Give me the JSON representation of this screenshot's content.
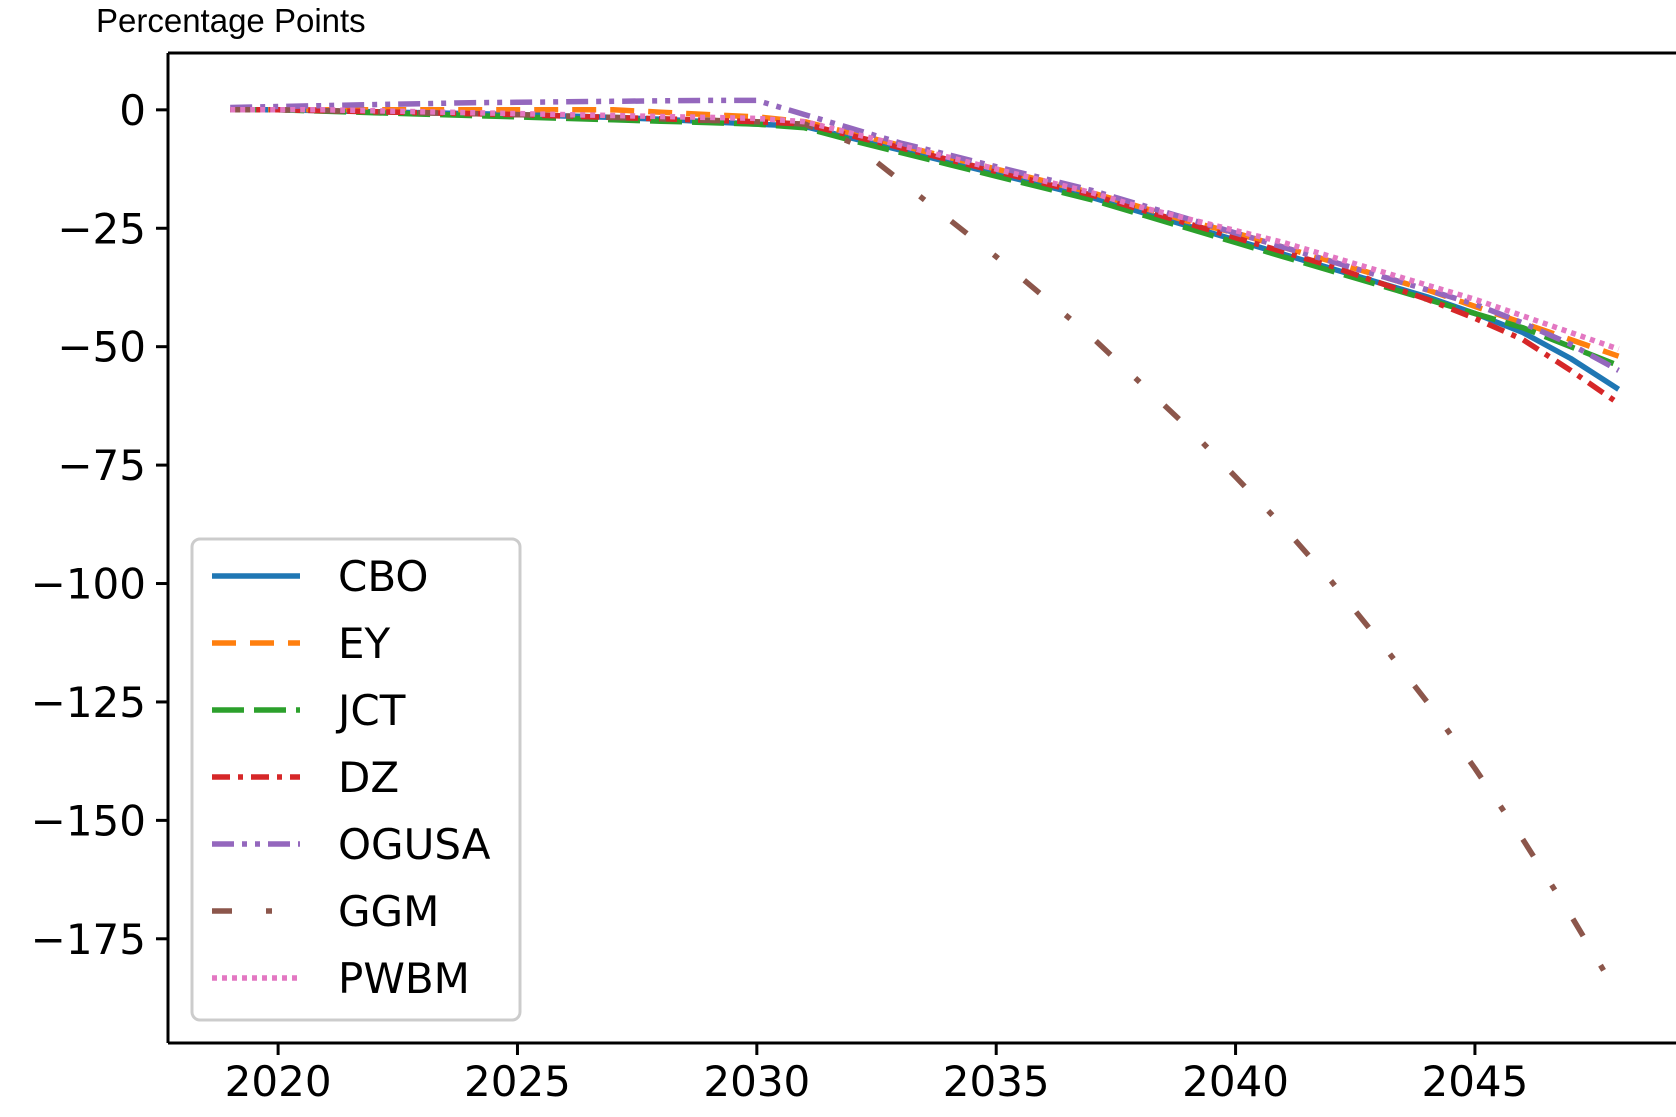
{
  "chart_data": {
    "type": "line",
    "ylabel": "Percentage Points",
    "xlim": [
      2017.7,
      2049.2
    ],
    "ylim": [
      -197,
      12
    ],
    "xticks": [
      2020,
      2025,
      2030,
      2035,
      2040,
      2045
    ],
    "yticks": [
      0,
      -25,
      -50,
      -75,
      -100,
      -125,
      -150,
      -175
    ],
    "ytick_labels": [
      "0",
      "−25",
      "−50",
      "−75",
      "−100",
      "−125",
      "−150",
      "−175"
    ],
    "grid": false,
    "legend_position": "lower-left",
    "x": [
      2019,
      2020,
      2021,
      2022,
      2023,
      2024,
      2025,
      2026,
      2027,
      2028,
      2029,
      2030,
      2031,
      2032,
      2033,
      2034,
      2035,
      2036,
      2037,
      2038,
      2039,
      2040,
      2041,
      2042,
      2043,
      2044,
      2045,
      2046,
      2047,
      2048
    ],
    "series": [
      {
        "name": "CBO",
        "color": "#1f77b4",
        "style": "solid",
        "values": [
          0,
          0,
          -0.2,
          -0.4,
          -0.6,
          -0.8,
          -1,
          -1.3,
          -1.6,
          -2,
          -2.5,
          -3,
          -3.5,
          -6,
          -8.5,
          -11,
          -13.5,
          -16,
          -18.5,
          -21.5,
          -24.5,
          -27.5,
          -30.5,
          -33.5,
          -36.5,
          -39.5,
          -43,
          -47,
          -52.5,
          -59
        ]
      },
      {
        "name": "EY",
        "color": "#ff7f0e",
        "style": "dashed",
        "values": [
          0,
          0,
          0,
          0,
          0,
          0,
          0,
          0,
          0,
          -0.5,
          -1,
          -1.5,
          -2.5,
          -5,
          -7.5,
          -10,
          -12.5,
          -15,
          -17.5,
          -20.5,
          -23.5,
          -26,
          -29,
          -32,
          -35,
          -38,
          -41.5,
          -45,
          -48.5,
          -52
        ]
      },
      {
        "name": "JCT",
        "color": "#2ca02c",
        "style": "longdash",
        "values": [
          0,
          0,
          -0.3,
          -0.6,
          -0.9,
          -1.2,
          -1.5,
          -1.8,
          -2.1,
          -2.4,
          -2.7,
          -3,
          -3.8,
          -6.5,
          -9,
          -11.5,
          -14,
          -16.5,
          -19,
          -22,
          -25,
          -28,
          -31,
          -34,
          -37,
          -40,
          -43,
          -46,
          -50,
          -54
        ]
      },
      {
        "name": "DZ",
        "color": "#d62728",
        "style": "dashdot",
        "values": [
          0,
          0,
          -0.2,
          -0.4,
          -0.6,
          -0.8,
          -1,
          -1.3,
          -1.6,
          -1.9,
          -2.2,
          -2.5,
          -3,
          -5.5,
          -8,
          -10.5,
          -13,
          -15.5,
          -18,
          -21,
          -24,
          -27,
          -30,
          -33,
          -36.5,
          -40,
          -44,
          -48.5,
          -55,
          -62
        ]
      },
      {
        "name": "OGUSA",
        "color": "#9467bd",
        "style": "dashdotdot",
        "values": [
          0.5,
          0.7,
          0.9,
          1.1,
          1.3,
          1.5,
          1.6,
          1.7,
          1.8,
          1.9,
          2,
          2,
          -1,
          -4,
          -7,
          -9.5,
          -12,
          -14.5,
          -17,
          -20,
          -23,
          -26,
          -29,
          -32,
          -35,
          -38,
          -41,
          -45,
          -49.5,
          -55
        ]
      },
      {
        "name": "GGM",
        "color": "#8c564b",
        "style": "sparsedashdot",
        "values": [
          0,
          0,
          -0.2,
          -0.4,
          -0.6,
          -0.8,
          -1,
          -1.3,
          -1.6,
          -1.9,
          -2.2,
          -2.5,
          -3,
          -7,
          -15,
          -23,
          -31,
          -39.5,
          -48,
          -57.5,
          -67,
          -77.5,
          -88,
          -99.5,
          -112,
          -125,
          -139,
          -154,
          -170,
          -187
        ]
      },
      {
        "name": "PWBM",
        "color": "#e377c2",
        "style": "dotted",
        "values": [
          0,
          0,
          0,
          -0.2,
          -0.4,
          -0.6,
          -0.8,
          -1,
          -1.2,
          -1.4,
          -1.6,
          -1.8,
          -2.5,
          -5,
          -7.5,
          -10,
          -12.5,
          -15,
          -17.5,
          -20.5,
          -23,
          -25.5,
          -28,
          -31,
          -34,
          -37,
          -40,
          -43.5,
          -47,
          -50.5
        ]
      }
    ]
  }
}
